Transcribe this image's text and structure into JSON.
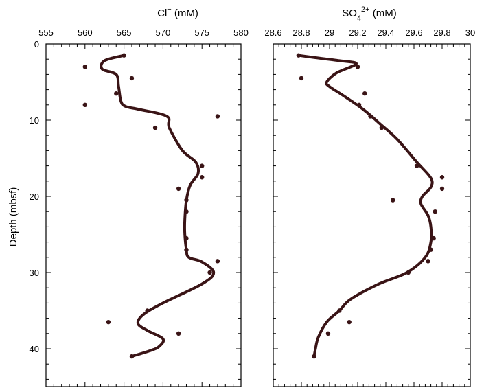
{
  "ylabel": "Depth (mbsf)",
  "chart_data": [
    {
      "type": "scatter",
      "title_main": "Cl",
      "title_sup": "−",
      "title_unit": " (mM)",
      "xlim": [
        555,
        580
      ],
      "ylim": [
        0,
        45
      ],
      "y_inverted": true,
      "xticks": [
        "555",
        "560",
        "565",
        "570",
        "575",
        "580"
      ],
      "yticks": [
        "0",
        "10",
        "20",
        "30",
        "40"
      ],
      "line_color": "#3a1416",
      "series": [
        {
          "kind": "points",
          "x": [
            565,
            560,
            566,
            564,
            560,
            577,
            569,
            575,
            575,
            572,
            573,
            573,
            573,
            573,
            577,
            576,
            568,
            563,
            572,
            566
          ],
          "y": [
            1.5,
            3.0,
            4.5,
            6.5,
            8.0,
            9.5,
            11.0,
            16.0,
            17.5,
            19.0,
            20.5,
            22.0,
            25.5,
            27.0,
            28.5,
            30.0,
            35.0,
            36.5,
            38.0,
            41.0
          ]
        },
        {
          "kind": "curve",
          "x": [
            565,
            562.5,
            562.2,
            564,
            564.3,
            564.6,
            565.2,
            567,
            570.5,
            570.8,
            572.5,
            574.2,
            574.5,
            573.5,
            573,
            572.8,
            572.8,
            573,
            573.3,
            575,
            576.5,
            575,
            570,
            567.5,
            566.8,
            568,
            570,
            569.5,
            568.5,
            566
          ],
          "y": [
            1.5,
            2.2,
            3.3,
            4.0,
            5.5,
            7.5,
            8.2,
            8.6,
            9.5,
            11.0,
            14.0,
            15.5,
            17.0,
            18.5,
            20.5,
            23.0,
            25.0,
            27.0,
            28.0,
            28.6,
            30.0,
            31.5,
            34.0,
            35.5,
            36.7,
            37.6,
            38.7,
            39.7,
            40.2,
            41.0
          ]
        }
      ]
    },
    {
      "type": "scatter",
      "title_main": "SO",
      "title_sub": "4",
      "title_sup": "2+",
      "title_unit": " (mM)",
      "xlim": [
        28.6,
        30
      ],
      "ylim": [
        0,
        45
      ],
      "y_inverted": true,
      "xticks": [
        "28.6",
        "28.8",
        "29",
        "29.2",
        "29.4",
        "29.6",
        "29.8",
        "30"
      ],
      "yticks": [
        "0",
        "10",
        "20",
        "30",
        "40"
      ],
      "line_color": "#3a1416",
      "series": [
        {
          "kind": "points",
          "x": [
            28.78,
            29.2,
            28.8,
            29.25,
            29.21,
            29.29,
            29.37,
            29.62,
            29.8,
            29.8,
            29.45,
            29.75,
            29.74,
            29.72,
            29.7,
            29.56,
            29.07,
            29.14,
            28.99,
            28.89
          ],
          "y": [
            1.5,
            3.0,
            4.5,
            6.5,
            8.0,
            9.5,
            11.0,
            16.0,
            17.5,
            19.0,
            20.5,
            22.0,
            25.5,
            27.0,
            28.5,
            30.0,
            35.0,
            36.5,
            38.0,
            41.0
          ]
        },
        {
          "kind": "curve",
          "x": [
            28.78,
            28.9,
            29.07,
            29.19,
            29.05,
            28.98,
            29.0,
            29.1,
            29.24,
            29.36,
            29.48,
            29.62,
            29.72,
            29.72,
            29.66,
            29.65,
            29.7,
            29.72,
            29.72,
            29.68,
            29.55,
            29.35,
            29.15,
            29.07,
            28.98,
            28.92,
            28.9,
            28.89
          ],
          "y": [
            1.5,
            1.8,
            2.2,
            2.6,
            3.8,
            5.0,
            5.6,
            6.8,
            8.6,
            10.5,
            12.5,
            15.5,
            17.6,
            18.8,
            20.0,
            21.0,
            22.5,
            24.0,
            26.0,
            28.0,
            30.0,
            31.5,
            33.5,
            35.0,
            36.5,
            38.5,
            40.0,
            41.0
          ]
        }
      ]
    }
  ]
}
